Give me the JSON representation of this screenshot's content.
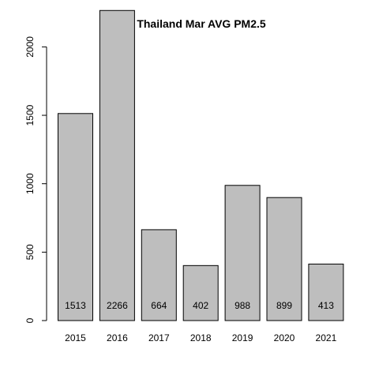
{
  "chart_data": {
    "type": "bar",
    "title": "Thailand Mar AVG PM2.5",
    "xlabel": "",
    "ylabel": "",
    "categories": [
      "2015",
      "2016",
      "2017",
      "2018",
      "2019",
      "2020",
      "2021"
    ],
    "values": [
      1513,
      2266,
      664,
      402,
      988,
      899,
      413
    ],
    "value_labels": [
      "1513",
      "2266",
      "664",
      "402",
      "988",
      "899",
      "413"
    ],
    "y_ticks": [
      0,
      500,
      1000,
      1500,
      2000
    ],
    "y_tick_labels": [
      "0",
      "500",
      "1000",
      "1500",
      "2000"
    ],
    "ylim": [
      0,
      2266
    ],
    "grid": false,
    "legend": "none",
    "bar_color": "#bebebe",
    "border_color": "#000000"
  }
}
